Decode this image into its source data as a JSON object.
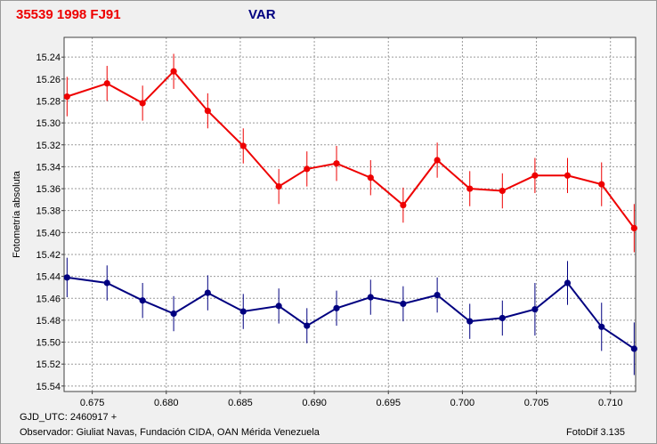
{
  "header": {
    "object": "35539 1998 FJ91",
    "label": "VAR",
    "object_color": "#ee0000",
    "label_color": "#000080"
  },
  "footer": {
    "gjd": "GJD_UTC: 2460917 +",
    "observer": "Observador: Giuliat Navas, Fundación CIDA, OAN Mérida Venezuela",
    "software": "FotoDif 3.135"
  },
  "chart_data": {
    "type": "line",
    "ylabel": "Fotometría absoluta",
    "xlabel": "",
    "xlim": [
      0.6731,
      0.7117
    ],
    "ylim": [
      15.545,
      15.222
    ],
    "y_inverted": true,
    "grid": true,
    "x_ticks": [
      "0.675",
      "0.680",
      "0.685",
      "0.690",
      "0.695",
      "0.700",
      "0.705",
      "0.710"
    ],
    "x_tick_values": [
      0.675,
      0.68,
      0.685,
      0.69,
      0.695,
      0.7,
      0.705,
      0.71
    ],
    "y_ticks": [
      "15.24",
      "15.26",
      "15.28",
      "15.30",
      "15.32",
      "15.34",
      "15.36",
      "15.38",
      "15.40",
      "15.42",
      "15.44",
      "15.46",
      "15.48",
      "15.50",
      "15.52",
      "15.54"
    ],
    "y_tick_values": [
      15.24,
      15.26,
      15.28,
      15.3,
      15.32,
      15.34,
      15.36,
      15.38,
      15.4,
      15.42,
      15.44,
      15.46,
      15.48,
      15.5,
      15.52,
      15.54
    ],
    "x": [
      0.6733,
      0.676,
      0.6784,
      0.6805,
      0.6828,
      0.6852,
      0.6876,
      0.6895,
      0.6915,
      0.6938,
      0.696,
      0.6983,
      0.7005,
      0.7027,
      0.7049,
      0.7071,
      0.7094,
      0.7116
    ],
    "series": [
      {
        "color": "#ee0000",
        "values": [
          15.276,
          15.264,
          15.282,
          15.253,
          15.289,
          15.321,
          15.358,
          15.342,
          15.337,
          15.35,
          15.375,
          15.334,
          15.36,
          15.362,
          15.348,
          15.348,
          15.356,
          15.396
        ],
        "errors": [
          0.018,
          0.016,
          0.016,
          0.016,
          0.016,
          0.016,
          0.016,
          0.016,
          0.016,
          0.016,
          0.016,
          0.016,
          0.016,
          0.016,
          0.016,
          0.016,
          0.02,
          0.022
        ]
      },
      {
        "color": "#000080",
        "values": [
          15.441,
          15.446,
          15.462,
          15.474,
          15.455,
          15.472,
          15.467,
          15.485,
          15.469,
          15.459,
          15.465,
          15.457,
          15.481,
          15.478,
          15.47,
          15.446,
          15.486,
          15.506
        ],
        "errors": [
          0.018,
          0.016,
          0.016,
          0.016,
          0.016,
          0.016,
          0.016,
          0.016,
          0.016,
          0.016,
          0.016,
          0.016,
          0.016,
          0.016,
          0.024,
          0.02,
          0.022,
          0.024
        ]
      }
    ]
  }
}
